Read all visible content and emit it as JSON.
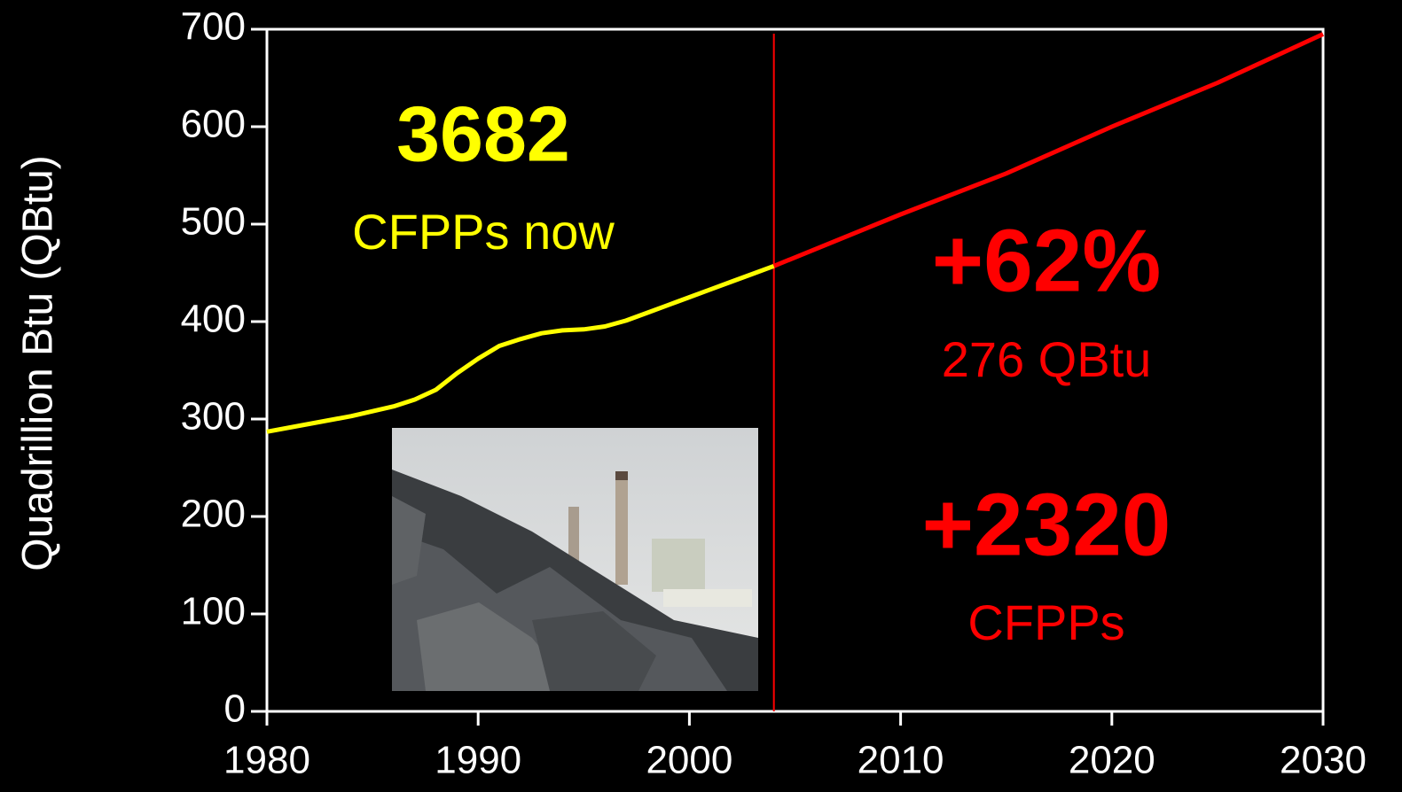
{
  "chart_data": {
    "type": "line",
    "y_label": "Quadrillion Btu (QBtu)",
    "x": [
      1980,
      1982,
      1984,
      1986,
      1987,
      1988,
      1989,
      1990,
      1991,
      1992,
      1993,
      1994,
      1995,
      1996,
      1997,
      1998,
      1999,
      2000,
      2001,
      2002,
      2003,
      2004,
      2010,
      2015,
      2020,
      2025,
      2030
    ],
    "series": [
      {
        "color": "#ffff00",
        "values": [
          287,
          295,
          303,
          313,
          320,
          330,
          347,
          362,
          375,
          382,
          388,
          391,
          392,
          395,
          401,
          409,
          417,
          425,
          433,
          441,
          449,
          457,
          null,
          null,
          null,
          null,
          null
        ]
      },
      {
        "color": "#ff0000",
        "values": [
          null,
          null,
          null,
          null,
          null,
          null,
          null,
          null,
          null,
          null,
          null,
          null,
          null,
          null,
          null,
          null,
          null,
          null,
          null,
          null,
          null,
          457,
          510,
          552,
          600,
          645,
          695
        ]
      }
    ],
    "vline": {
      "x": 2004,
      "color": "#ff0000"
    },
    "xlim": [
      1980,
      2030
    ],
    "xticks": [
      1980,
      1990,
      2000,
      2010,
      2020,
      2030
    ],
    "ylim": [
      0,
      700
    ],
    "yticks": [
      0,
      100,
      200,
      300,
      400,
      500,
      600,
      700
    ],
    "grid": false,
    "annotations": [
      {
        "text": "3682",
        "color": "#ffff00"
      },
      {
        "text": "CFPPs now",
        "color": "#ffff00"
      },
      {
        "text": "+62%",
        "color": "#ff0000"
      },
      {
        "text": "276 QBtu",
        "color": "#ff0000"
      },
      {
        "text": "+2320",
        "color": "#ff0000"
      },
      {
        "text": "CFPPs",
        "color": "#ff0000"
      }
    ]
  }
}
